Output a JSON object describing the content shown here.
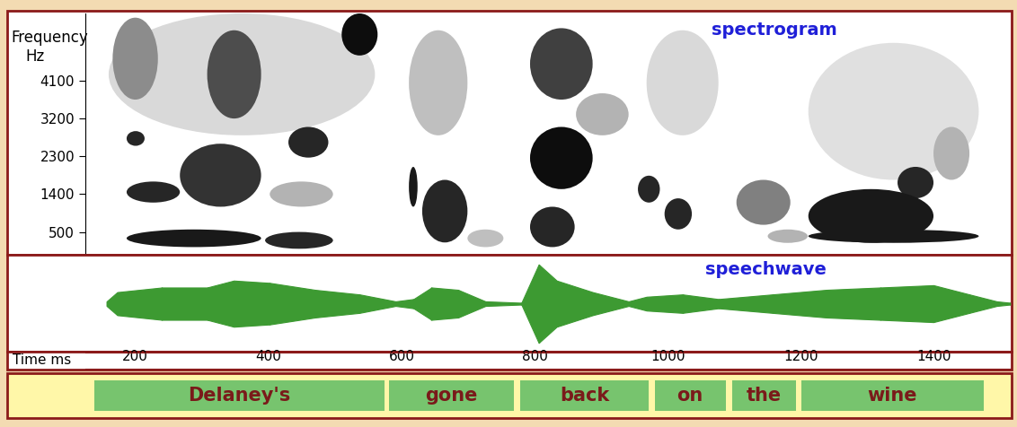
{
  "chart_data": [
    {
      "type": "spectrogram",
      "title": "spectrogram",
      "y_label": "Frequency",
      "y_unit": "Hz",
      "xlim": [
        125,
        1515
      ],
      "ylim": [
        0,
        5700
      ],
      "yticks": [
        500,
        1400,
        2300,
        3200,
        4100
      ],
      "tick_labels": "y",
      "regions": [
        {
          "t": [
            160,
            560
          ],
          "f": [
            2800,
            5700
          ],
          "level": 0.15
        },
        {
          "t": [
            166,
            234
          ],
          "f": [
            3650,
            5600
          ],
          "level": 0.45
        },
        {
          "t": [
            187,
            389
          ],
          "f": [
            140,
            560
          ],
          "level": 0.9
        },
        {
          "t": [
            395,
            497
          ],
          "f": [
            100,
            500
          ],
          "level": 0.85
        },
        {
          "t": [
            187,
            267
          ],
          "f": [
            1200,
            1700
          ],
          "level": 0.85
        },
        {
          "t": [
            267,
            389
          ],
          "f": [
            1100,
            2600
          ],
          "level": 0.8
        },
        {
          "t": [
            308,
            389
          ],
          "f": [
            3200,
            5300
          ],
          "level": 0.7
        },
        {
          "t": [
            187,
            214
          ],
          "f": [
            2550,
            2900
          ],
          "level": 0.85
        },
        {
          "t": [
            430,
            490
          ],
          "f": [
            2270,
            3000
          ],
          "level": 0.85
        },
        {
          "t": [
            510,
            564
          ],
          "f": [
            4700,
            5700
          ],
          "level": 0.95
        },
        {
          "t": [
            402,
            497
          ],
          "f": [
            1100,
            1700
          ],
          "level": 0.3
        },
        {
          "t": [
            611,
            624
          ],
          "f": [
            1100,
            2050
          ],
          "level": 0.9
        },
        {
          "t": [
            631,
            699
          ],
          "f": [
            250,
            1740
          ],
          "level": 0.85
        },
        {
          "t": [
            611,
            699
          ],
          "f": [
            2800,
            5300
          ],
          "level": 0.25
        },
        {
          "t": [
            699,
            753
          ],
          "f": [
            140,
            560
          ],
          "level": 0.25
        },
        {
          "t": [
            793,
            887
          ],
          "f": [
            3650,
            5350
          ],
          "level": 0.75
        },
        {
          "t": [
            793,
            887
          ],
          "f": [
            1520,
            3000
          ],
          "level": 0.95
        },
        {
          "t": [
            793,
            860
          ],
          "f": [
            140,
            1100
          ],
          "level": 0.85
        },
        {
          "t": [
            862,
            941
          ],
          "f": [
            2800,
            3800
          ],
          "level": 0.3
        },
        {
          "t": [
            955,
            988
          ],
          "f": [
            1200,
            1840
          ],
          "level": 0.85
        },
        {
          "t": [
            995,
            1036
          ],
          "f": [
            560,
            1300
          ],
          "level": 0.85
        },
        {
          "t": [
            968,
            1076
          ],
          "f": [
            2800,
            5300
          ],
          "level": 0.15
        },
        {
          "t": [
            1103,
            1184
          ],
          "f": [
            670,
            1740
          ],
          "level": 0.5
        },
        {
          "t": [
            1150,
            1210
          ],
          "f": [
            240,
            560
          ],
          "level": 0.3
        },
        {
          "t": [
            1211,
            1467
          ],
          "f": [
            1740,
            5000
          ],
          "level": 0.12
        },
        {
          "t": [
            1211,
            1399
          ],
          "f": [
            240,
            1520
          ],
          "level": 0.9
        },
        {
          "t": [
            1345,
            1399
          ],
          "f": [
            1300,
            2050
          ],
          "level": 0.85
        },
        {
          "t": [
            1211,
            1467
          ],
          "f": [
            240,
            560
          ],
          "level": 0.9
        },
        {
          "t": [
            1399,
            1453
          ],
          "f": [
            1740,
            3000
          ],
          "level": 0.3
        }
      ]
    },
    {
      "type": "waveform",
      "title": "speechwave",
      "xlim": [
        125,
        1515
      ],
      "ylim": [
        -1,
        1
      ],
      "tick_labels": false,
      "color": "#3d9a32",
      "x": [
        157,
        173,
        240,
        308,
        348,
        402,
        470,
        537,
        591,
        618,
        645,
        685,
        726,
        780,
        806,
        833,
        887,
        941,
        968,
        1022,
        1076,
        1157,
        1238,
        1319,
        1399,
        1453,
        1494,
        1514
      ],
      "values": [
        0.05,
        0.25,
        0.35,
        0.35,
        0.5,
        0.45,
        0.3,
        0.2,
        0.05,
        0.1,
        0.35,
        0.3,
        0.05,
        0.02,
        0.85,
        0.5,
        0.25,
        0.05,
        0.15,
        0.2,
        0.1,
        0.2,
        0.3,
        0.35,
        0.4,
        0.2,
        0.05,
        0.02
      ]
    },
    {
      "type": "time_axis",
      "x_label": "Time ms",
      "xlim": [
        125,
        1515
      ],
      "xticks": [
        200,
        400,
        600,
        800,
        1000,
        1200,
        1400
      ]
    },
    {
      "type": "segments",
      "xlim": [
        125,
        1515
      ],
      "color": "#77c46e",
      "segments": [
        {
          "label": "Delaney's",
          "start": 138,
          "end": 575
        },
        {
          "label": "gone",
          "start": 581,
          "end": 769
        },
        {
          "label": "back",
          "start": 778,
          "end": 971
        },
        {
          "label": "on",
          "start": 980,
          "end": 1087
        },
        {
          "label": "the",
          "start": 1096,
          "end": 1192
        },
        {
          "label": "wine",
          "start": 1201,
          "end": 1474
        }
      ]
    }
  ]
}
